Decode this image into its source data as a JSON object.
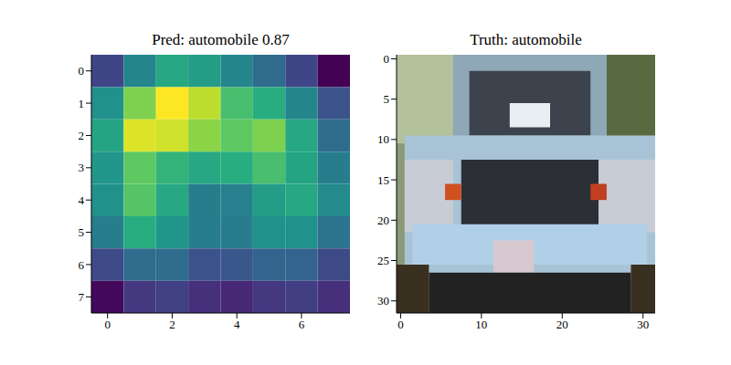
{
  "chart_data": [
    {
      "type": "heatmap",
      "title": "Pred: automobile 0.87",
      "color": "viridis",
      "cells": [
        [
          0.2,
          0.45,
          0.6,
          0.55,
          0.45,
          0.35,
          0.2,
          0.0
        ],
        [
          0.5,
          0.8,
          1.0,
          0.9,
          0.7,
          0.62,
          0.45,
          0.25
        ],
        [
          0.58,
          0.95,
          0.93,
          0.82,
          0.75,
          0.8,
          0.6,
          0.35
        ],
        [
          0.52,
          0.75,
          0.65,
          0.6,
          0.62,
          0.7,
          0.58,
          0.42
        ],
        [
          0.5,
          0.73,
          0.6,
          0.42,
          0.43,
          0.55,
          0.6,
          0.47
        ],
        [
          0.42,
          0.62,
          0.52,
          0.42,
          0.42,
          0.5,
          0.5,
          0.38
        ],
        [
          0.22,
          0.35,
          0.35,
          0.25,
          0.27,
          0.32,
          0.32,
          0.22
        ],
        [
          0.02,
          0.15,
          0.18,
          0.12,
          0.1,
          0.15,
          0.17,
          0.12
        ]
      ],
      "xlim": [
        -0.5,
        7.5
      ],
      "ylim": [
        7.5,
        -0.5
      ],
      "xticks": [
        0,
        2,
        4,
        6
      ],
      "yticks": [
        0,
        1,
        2,
        3,
        4,
        5,
        6,
        7
      ]
    },
    {
      "type": "image",
      "title": "Truth: automobile",
      "xlim": [
        -0.5,
        31.5
      ],
      "ylim": [
        31.5,
        -0.5
      ],
      "xticks": [
        0,
        10,
        20,
        30
      ],
      "yticks": [
        0,
        5,
        10,
        15,
        20,
        25,
        30
      ]
    }
  ]
}
